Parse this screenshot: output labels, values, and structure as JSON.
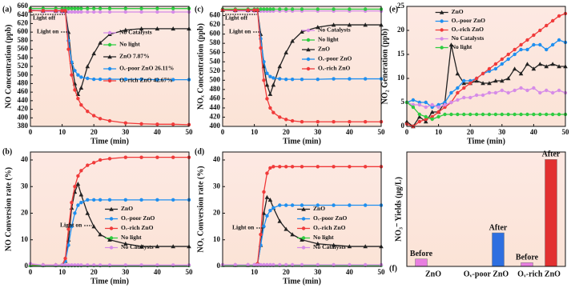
{
  "chart_data": [
    {
      "type": "line",
      "label": "(a)",
      "xlabel": "Time (min)",
      "ylabel": "NO Concentration (ppb)",
      "xlim": [
        0,
        50
      ],
      "xticks": [
        0,
        10,
        20,
        30,
        40,
        50
      ],
      "ylim": [
        380,
        660
      ],
      "yticks": [
        380,
        400,
        420,
        440,
        460,
        480,
        500,
        520,
        540,
        560,
        580,
        600,
        620,
        640,
        660
      ],
      "legend": "center right",
      "annotations": [
        "Light off",
        "Light on"
      ],
      "x": [
        0,
        4,
        8,
        10,
        11,
        12,
        13,
        14,
        15,
        16,
        18,
        20,
        22,
        25,
        30,
        35,
        40,
        45,
        50
      ],
      "series": [
        {
          "name": "No Catalysts",
          "color": "#d68be8",
          "marker": "circle",
          "values": [
            652,
            648,
            648,
            647,
            647,
            647,
            647,
            647,
            647,
            647,
            647,
            647,
            647,
            647,
            647,
            647,
            647,
            647,
            647
          ]
        },
        {
          "name": "No light",
          "color": "#2ecc40",
          "marker": "circle",
          "values": [
            655,
            655,
            655,
            655,
            655,
            655,
            655,
            655,
            655,
            655,
            655,
            655,
            655,
            655,
            655,
            655,
            655,
            655,
            655
          ]
        },
        {
          "name": "ZnO 7.87%",
          "color": "#222222",
          "marker": "triangle",
          "values": [
            650,
            650,
            650,
            650,
            650,
            600,
            530,
            480,
            455,
            470,
            520,
            550,
            575,
            595,
            605,
            608,
            608,
            608,
            608
          ]
        },
        {
          "name": "Oᵥ-poor ZnO 26.11%",
          "color": "#1e8ff0",
          "marker": "circle",
          "values": [
            650,
            650,
            650,
            650,
            650,
            580,
            530,
            510,
            500,
            495,
            492,
            490,
            490,
            490,
            490,
            490,
            489,
            489,
            489
          ]
        },
        {
          "name": "Oᵥ-rich ZnO 42.67%",
          "color": "#f03a3a",
          "marker": "circle",
          "values": [
            650,
            650,
            650,
            650,
            650,
            560,
            500,
            465,
            445,
            430,
            415,
            405,
            398,
            393,
            388,
            386,
            385,
            385,
            384
          ]
        }
      ]
    },
    {
      "type": "line",
      "label": "(b)",
      "xlabel": "Time (min)",
      "ylabel": "NO Conversion rate (%)",
      "xlim": [
        0,
        50
      ],
      "xticks": [
        0,
        10,
        20,
        30,
        40,
        50
      ],
      "ylim": [
        0,
        43
      ],
      "yticks": [
        0,
        10,
        20,
        30,
        40
      ],
      "legend": "lower right",
      "annotations": [
        "Light on"
      ],
      "x": [
        0,
        4,
        8,
        10,
        11,
        12,
        13,
        14,
        15,
        16,
        18,
        20,
        22,
        25,
        30,
        35,
        40,
        45,
        50
      ],
      "series": [
        {
          "name": "ZnO",
          "color": "#222222",
          "marker": "triangle",
          "values": [
            0.5,
            0.5,
            0.5,
            0.5,
            2,
            10,
            22,
            28,
            31,
            27,
            20,
            15,
            12,
            10,
            8.5,
            7.5,
            7.5,
            7.5,
            7.5
          ]
        },
        {
          "name": "Oᵥ-poor ZnO",
          "color": "#1e8ff0",
          "marker": "circle",
          "values": [
            0.5,
            0.5,
            0.5,
            0.5,
            2,
            8,
            15,
            20,
            23,
            24,
            25,
            25,
            25,
            25,
            25,
            25,
            25,
            25,
            25
          ]
        },
        {
          "name": "Oᵥ-rich ZnO",
          "color": "#f03a3a",
          "marker": "circle",
          "values": [
            0.5,
            0.5,
            0.5,
            0.5,
            3,
            14,
            24,
            30,
            34,
            36,
            38,
            39,
            40,
            40.5,
            41,
            41,
            41,
            41,
            41
          ]
        },
        {
          "name": "No light",
          "color": "#2ecc40",
          "marker": "circle",
          "values": [
            0.3,
            0.3,
            0.3,
            0.3,
            0.3,
            0.3,
            0.3,
            0.3,
            0.3,
            0.3,
            0.3,
            0.3,
            0.3,
            0.3,
            0.3,
            0.3,
            0.3,
            0.3,
            0.3
          ]
        },
        {
          "name": "No Catalysts",
          "color": "#d68be8",
          "marker": "circle",
          "values": [
            1,
            0.5,
            0.5,
            0.5,
            0.5,
            0.5,
            0.5,
            0.5,
            0.5,
            0.5,
            0.5,
            0.5,
            0.5,
            0.5,
            0.5,
            0.5,
            0.5,
            0.5,
            0.5
          ]
        }
      ]
    },
    {
      "type": "line",
      "label": "(c)",
      "xlabel": "Time (min)",
      "ylabel": "NOₓ Concentration (ppb)",
      "xlim": [
        0,
        50
      ],
      "xticks": [
        0,
        10,
        20,
        30,
        40,
        50
      ],
      "ylim": [
        400,
        660
      ],
      "yticks": [
        400,
        420,
        440,
        460,
        480,
        500,
        520,
        540,
        560,
        580,
        600,
        620,
        640
      ],
      "legend": "upper right",
      "annotations": [
        "Light off",
        "Light on"
      ],
      "x": [
        0,
        4,
        8,
        10,
        11,
        12,
        13,
        14,
        15,
        16,
        18,
        20,
        22,
        25,
        30,
        35,
        40,
        45,
        50
      ],
      "series": [
        {
          "name": "No Catalysts",
          "color": "#d68be8",
          "marker": "circle",
          "values": [
            652,
            650,
            650,
            650,
            650,
            650,
            650,
            650,
            650,
            650,
            650,
            650,
            650,
            650,
            650,
            650,
            650,
            650,
            650
          ]
        },
        {
          "name": "No light",
          "color": "#2ecc40",
          "marker": "circle",
          "values": [
            654,
            654,
            654,
            654,
            654,
            654,
            654,
            654,
            654,
            654,
            654,
            654,
            654,
            654,
            654,
            654,
            654,
            654,
            654
          ]
        },
        {
          "name": "ZnO",
          "color": "#222222",
          "marker": "triangle",
          "values": [
            652,
            652,
            652,
            652,
            652,
            600,
            530,
            490,
            470,
            490,
            530,
            560,
            585,
            605,
            615,
            620,
            620,
            620,
            620
          ]
        },
        {
          "name": "Oᵥ-poor ZnO",
          "color": "#1e8ff0",
          "marker": "circle",
          "values": [
            652,
            652,
            652,
            652,
            652,
            590,
            540,
            515,
            508,
            505,
            503,
            502,
            502,
            502,
            502,
            503,
            503,
            503,
            503
          ]
        },
        {
          "name": "Oᵥ-rich ZnO",
          "color": "#f03a3a",
          "marker": "circle",
          "values": [
            652,
            652,
            652,
            652,
            652,
            570,
            500,
            460,
            440,
            430,
            420,
            415,
            412,
            410,
            410,
            410,
            410,
            410,
            410
          ]
        }
      ]
    },
    {
      "type": "line",
      "label": "(d)",
      "xlabel": "Time (min)",
      "ylabel": "NOₓ Conversion rate (%)",
      "xlim": [
        0,
        50
      ],
      "xticks": [
        10,
        20,
        30,
        40,
        50
      ],
      "ylim": [
        0,
        43
      ],
      "yticks": [
        0,
        10,
        20,
        30,
        40
      ],
      "legend": "lower right",
      "annotations": [
        "Light on"
      ],
      "x": [
        0,
        4,
        8,
        10,
        11,
        12,
        13,
        14,
        15,
        16,
        18,
        20,
        22,
        25,
        30,
        35,
        40,
        45,
        50
      ],
      "series": [
        {
          "name": "ZnO",
          "color": "#222222",
          "marker": "triangle",
          "values": [
            0.5,
            0.5,
            0.5,
            0.5,
            1,
            8,
            20,
            26,
            25,
            22,
            17,
            14,
            12,
            10,
            8.5,
            8,
            7.5,
            7.5,
            7.5
          ]
        },
        {
          "name": "Oᵥ-poor ZnO",
          "color": "#1e8ff0",
          "marker": "circle",
          "values": [
            0.5,
            0.5,
            0.5,
            0.5,
            1,
            8,
            15,
            19,
            21,
            22,
            23,
            23,
            23,
            23,
            23,
            23,
            23,
            23,
            23
          ]
        },
        {
          "name": "Oᵥ-rich ZnO",
          "color": "#f03a3a",
          "marker": "circle",
          "values": [
            0.5,
            0.5,
            0.5,
            0.5,
            1,
            12,
            28,
            35,
            37,
            37.5,
            37.5,
            37.5,
            37.5,
            37.5,
            37.5,
            37.5,
            37.5,
            37.5,
            37.5
          ]
        },
        {
          "name": "No light",
          "color": "#2ecc40",
          "marker": "circle",
          "values": [
            0.4,
            0.4,
            0.4,
            0.4,
            0.4,
            0.4,
            0.4,
            0.4,
            0.4,
            0.4,
            0.4,
            0.4,
            0.4,
            0.4,
            0.4,
            0.4,
            0.4,
            0.4,
            0.4
          ]
        },
        {
          "name": "No Catalysts",
          "color": "#d68be8",
          "marker": "circle",
          "values": [
            0.6,
            0.6,
            0.6,
            0.6,
            0.6,
            0.6,
            0.6,
            0.6,
            0.6,
            0.6,
            0.6,
            0.6,
            0.6,
            0.6,
            0.6,
            0.6,
            0.6,
            0.6,
            0.6
          ]
        }
      ]
    },
    {
      "type": "line",
      "label": "(e)",
      "xlabel": "Time (min)",
      "ylabel": "NO₂ Generation (ppb)",
      "xlim": [
        0,
        50
      ],
      "xticks": [
        0,
        10,
        20,
        30,
        40,
        50
      ],
      "ylim": [
        0,
        25
      ],
      "yticks": [
        0,
        5,
        10,
        15,
        20,
        25
      ],
      "legend": "upper left",
      "x": [
        0,
        2,
        4,
        6,
        8,
        10,
        12,
        14,
        16,
        18,
        20,
        22,
        24,
        26,
        28,
        30,
        32,
        34,
        36,
        38,
        40,
        42,
        44,
        46,
        48,
        50
      ],
      "series": [
        {
          "name": "ZnO",
          "color": "#222222",
          "marker": "triangle",
          "values": [
            1,
            0,
            2,
            1,
            3,
            3,
            5,
            17,
            11,
            9,
            9,
            9.5,
            9,
            9,
            9.5,
            9.5,
            10,
            12,
            11,
            13,
            12,
            13,
            12.5,
            13,
            12.5,
            12.5
          ]
        },
        {
          "name": "Oᵥ-poor ZnO",
          "color": "#1e8ff0",
          "marker": "circle",
          "values": [
            5,
            5.5,
            5,
            5,
            4,
            4.5,
            5,
            7,
            8,
            9.5,
            9.5,
            10,
            11,
            11.5,
            12,
            13,
            14,
            15,
            16,
            16,
            17,
            17,
            16,
            17,
            18,
            17.5
          ]
        },
        {
          "name": "Oᵥ-rich ZnO",
          "color": "#f03a3a",
          "marker": "circle",
          "values": [
            0.5,
            0,
            1,
            1.5,
            2,
            3,
            4,
            5,
            7,
            8,
            9,
            10,
            11,
            12,
            13,
            14,
            15,
            16,
            17,
            18,
            19,
            20,
            21,
            22,
            23,
            23.5
          ]
        },
        {
          "name": "No Catalysts",
          "color": "#d68be8",
          "marker": "circle",
          "values": [
            5,
            4.5,
            4.5,
            4,
            4.5,
            4,
            4.5,
            5,
            5.5,
            6,
            6,
            6.5,
            6.5,
            7,
            7,
            7.5,
            7,
            7.5,
            8,
            7.5,
            8,
            7,
            7.5,
            7,
            7.5,
            7
          ]
        },
        {
          "name": "No light",
          "color": "#2ecc40",
          "marker": "circle",
          "values": [
            5,
            4,
            2.5,
            2,
            1.5,
            2,
            2.5,
            2.5,
            2.5,
            2.5,
            2.5,
            2.5,
            2.5,
            2.5,
            2.5,
            2.5,
            2.5,
            2.5,
            2.5,
            2.5,
            2.5,
            2.5,
            2.5,
            2.5,
            2.5,
            2.5
          ]
        }
      ]
    },
    {
      "type": "bar",
      "label": "(f)",
      "ylabel": "NO₃⁻ Yields (μg/L)",
      "ylim": [
        0,
        4.6
      ],
      "categories": [
        "ZnO",
        "Oᵥ-poor ZnO",
        "Oᵥ-rich ZnO"
      ],
      "series": [
        {
          "name": "Before",
          "color": "#e87ee0",
          "values": [
            0.3,
            null,
            0.15
          ]
        },
        {
          "name": "After",
          "colors": [
            null,
            "#2e6fe0",
            "#e23030"
          ],
          "values": [
            null,
            1.35,
            4.3
          ]
        }
      ]
    }
  ]
}
